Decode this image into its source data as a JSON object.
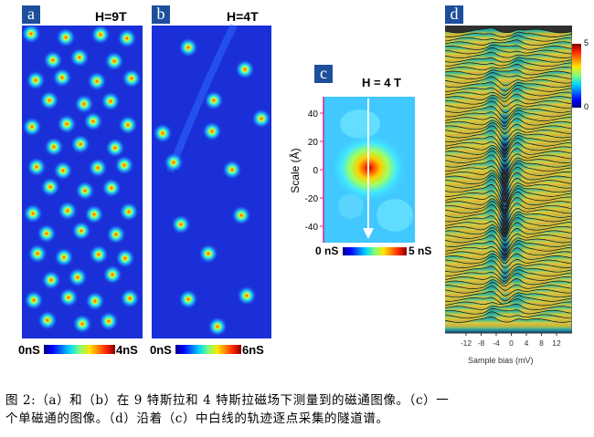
{
  "panel_a": {
    "label": "a",
    "field": "H=9T",
    "cbar_min": "0nS",
    "cbar_max": "4nS"
  },
  "panel_b": {
    "label": "b",
    "field": "H=4T",
    "cbar_min": "0nS",
    "cbar_max": "6nS"
  },
  "panel_c": {
    "label": "c",
    "field": "H = 4 T",
    "ylabel": "Scale (Å)",
    "yticks": [
      "40",
      "20",
      "0",
      "-20",
      "-40"
    ],
    "cbar_min": "0 nS",
    "cbar_max": "5 nS"
  },
  "panel_d": {
    "label": "d",
    "xlabel": "Sample bias (mV)",
    "xticks": [
      "-12",
      "-8",
      "-4",
      "0",
      "4",
      "8",
      "12"
    ],
    "cbar_min": "0",
    "cbar_max": "5"
  },
  "caption": {
    "line1": "图 2:（a）和（b）在 9 特斯拉和 4 特斯拉磁场下测量到的磁通图像。（c）一",
    "line2": "个单磁通的图像。（d）沿着（c）中白线的轨迹逐点采集的隧道谱。"
  },
  "colors": {
    "label_bg": "#1d4f9c",
    "map_bg": "#1a2fd8",
    "axis_magenta": "#e0258b"
  }
}
